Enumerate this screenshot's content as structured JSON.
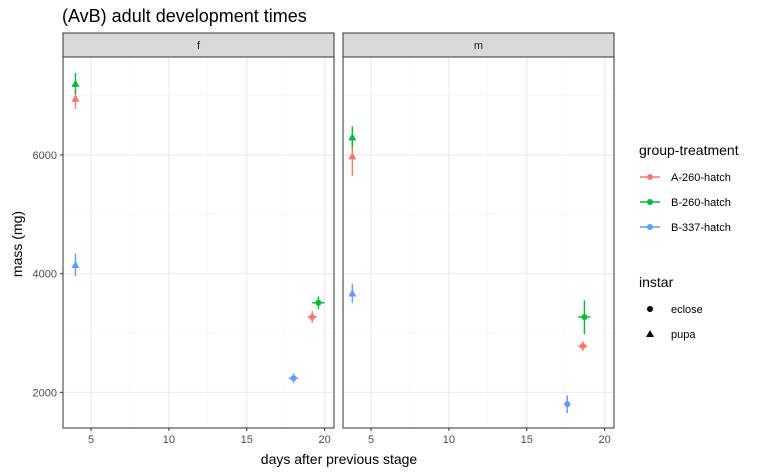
{
  "chart_data": {
    "type": "scatter",
    "title": "(AvB) adult development times",
    "xlabel": "days after previous stage",
    "ylabel": "mass (mg)",
    "xlim": [
      3.2,
      20.6
    ],
    "ylim": [
      1400,
      7650
    ],
    "x_ticks": [
      5,
      10,
      15,
      20
    ],
    "y_ticks": [
      2000,
      4000,
      6000
    ],
    "grid": true,
    "panels": [
      "f",
      "m"
    ],
    "legend": {
      "placement": "right",
      "color_title": "group-treatment",
      "color_entries": [
        {
          "name": "A-260-hatch",
          "color": "#F8766D"
        },
        {
          "name": "B-260-hatch",
          "color": "#00BA38"
        },
        {
          "name": "B-337-hatch",
          "color": "#619CFF"
        }
      ],
      "shape_title": "instar",
      "shape_entries": [
        {
          "name": "eclose",
          "shape": "circle"
        },
        {
          "name": "pupa",
          "shape": "triangle"
        }
      ]
    },
    "series": [
      {
        "panel": "f",
        "group": "A-260-hatch",
        "instar": "pupa",
        "x": 4.0,
        "y": 6950,
        "ylo": 6780,
        "yhi": 7130
      },
      {
        "panel": "f",
        "group": "B-260-hatch",
        "instar": "pupa",
        "x": 4.0,
        "y": 7200,
        "ylo": 7020,
        "yhi": 7380
      },
      {
        "panel": "f",
        "group": "B-337-hatch",
        "instar": "pupa",
        "x": 4.0,
        "y": 4150,
        "ylo": 3960,
        "yhi": 4340
      },
      {
        "panel": "f",
        "group": "A-260-hatch",
        "instar": "eclose",
        "x": 19.2,
        "y": 3270,
        "ylo": 3170,
        "yhi": 3370,
        "xlo": 18.9,
        "xhi": 19.5
      },
      {
        "panel": "f",
        "group": "B-260-hatch",
        "instar": "eclose",
        "x": 19.6,
        "y": 3510,
        "ylo": 3400,
        "yhi": 3620,
        "xlo": 19.2,
        "xhi": 20.0
      },
      {
        "panel": "f",
        "group": "B-337-hatch",
        "instar": "eclose",
        "x": 18.0,
        "y": 2240,
        "ylo": 2160,
        "yhi": 2320,
        "xlo": 17.7,
        "xhi": 18.3
      },
      {
        "panel": "m",
        "group": "A-260-hatch",
        "instar": "pupa",
        "x": 3.8,
        "y": 5980,
        "ylo": 5650,
        "yhi": 6300
      },
      {
        "panel": "m",
        "group": "B-260-hatch",
        "instar": "pupa",
        "x": 3.8,
        "y": 6300,
        "ylo": 6130,
        "yhi": 6480
      },
      {
        "panel": "m",
        "group": "B-337-hatch",
        "instar": "pupa",
        "x": 3.8,
        "y": 3670,
        "ylo": 3510,
        "yhi": 3830
      },
      {
        "panel": "m",
        "group": "A-260-hatch",
        "instar": "eclose",
        "x": 18.6,
        "y": 2780,
        "ylo": 2700,
        "yhi": 2860,
        "xlo": 18.3,
        "xhi": 18.9
      },
      {
        "panel": "m",
        "group": "B-260-hatch",
        "instar": "eclose",
        "x": 18.7,
        "y": 3270,
        "ylo": 2980,
        "yhi": 3550,
        "xlo": 18.3,
        "xhi": 19.1
      },
      {
        "panel": "m",
        "group": "B-337-hatch",
        "instar": "eclose",
        "x": 17.6,
        "y": 1800,
        "ylo": 1650,
        "yhi": 1950,
        "xlo": 17.4,
        "xhi": 17.8
      }
    ]
  }
}
